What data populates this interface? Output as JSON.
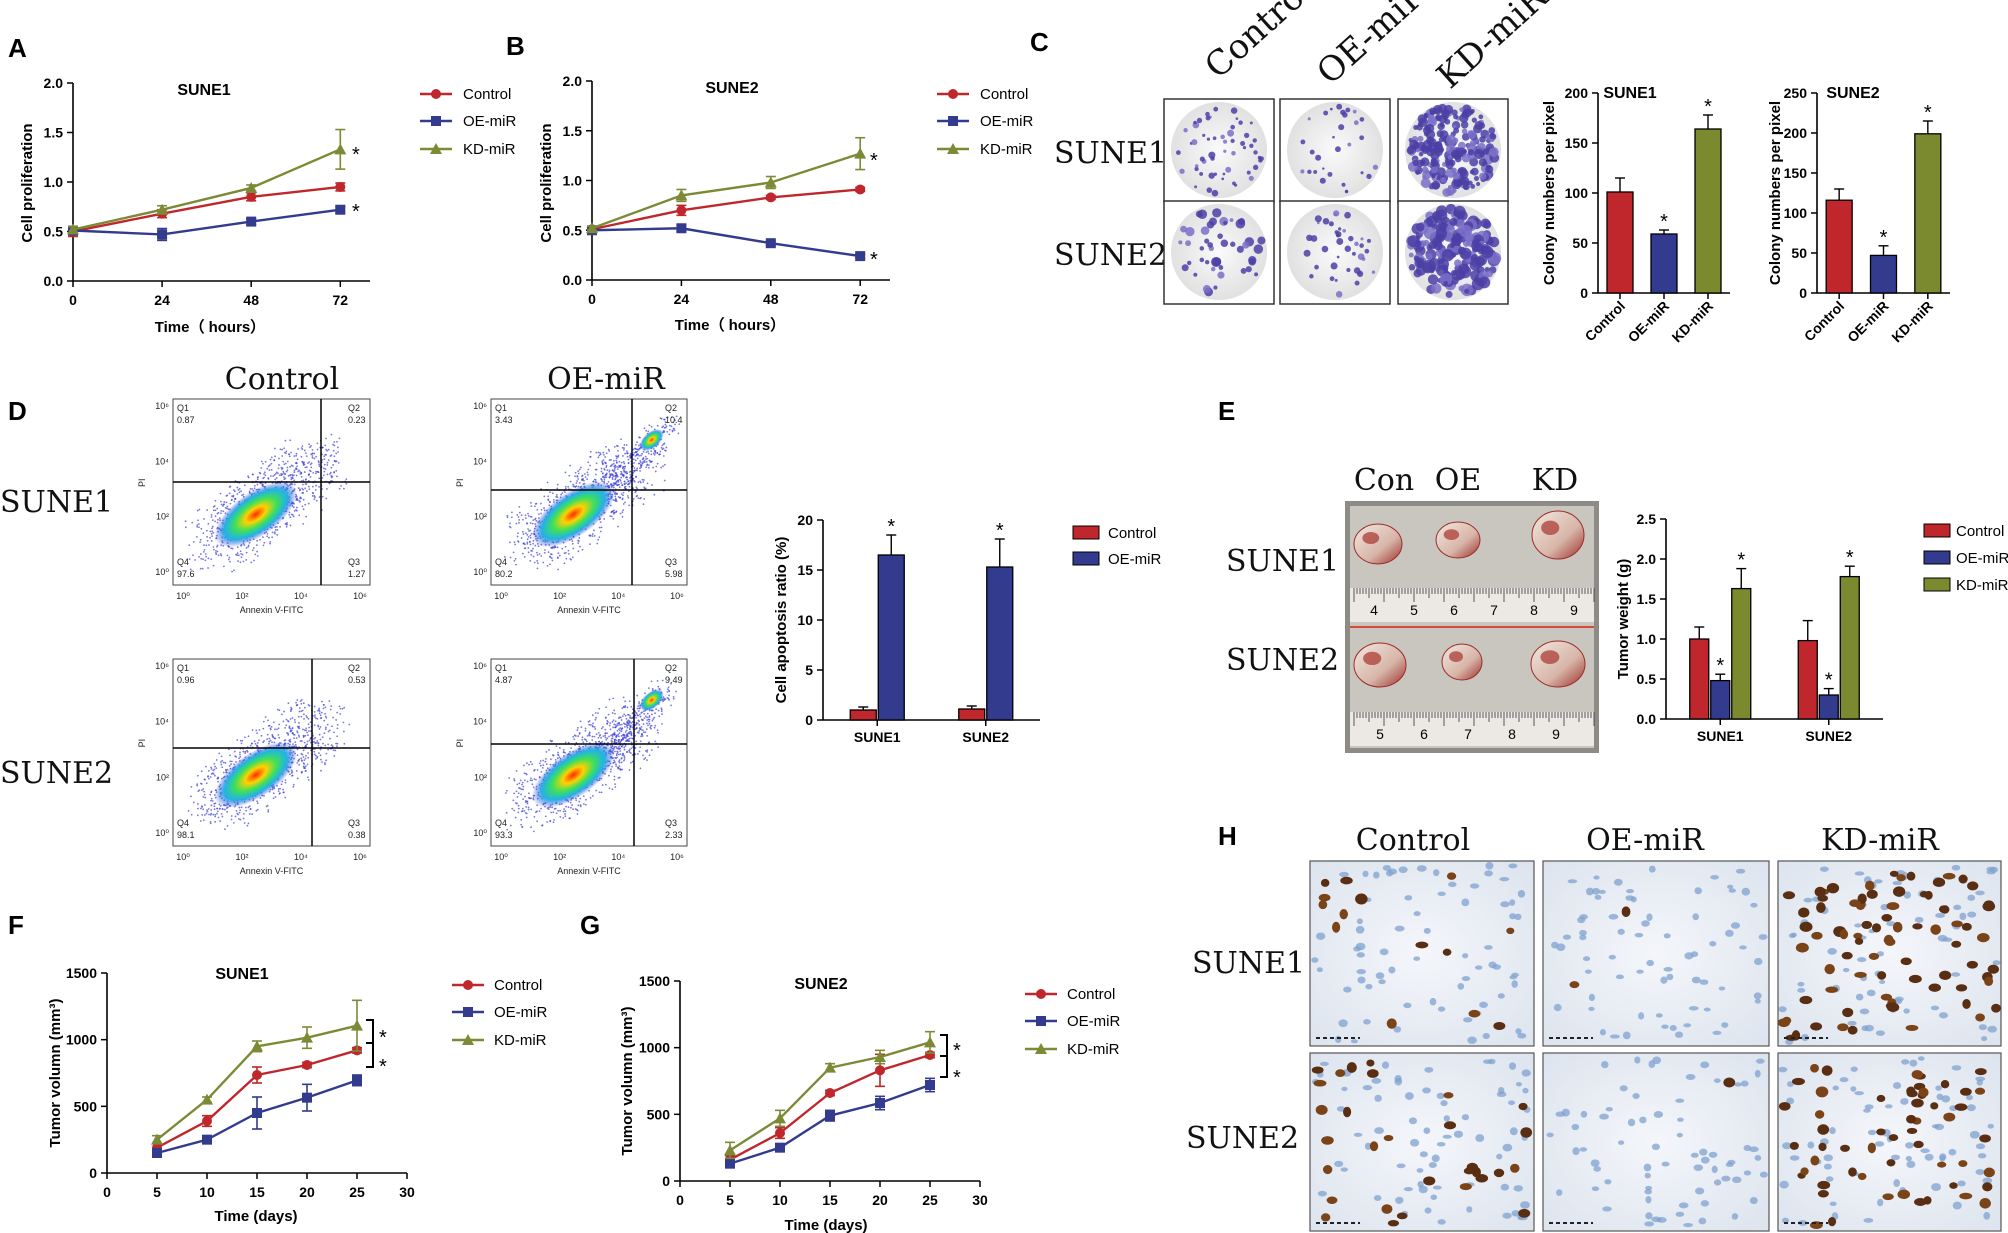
{
  "panels": {
    "A": "A",
    "B": "B",
    "C": "C",
    "D": "D",
    "E": "E",
    "F": "F",
    "G": "G",
    "H": "H"
  },
  "colors": {
    "control": "#c0272d",
    "oe": "#323b8e",
    "kd": "#7d8a35",
    "kdbar": "#7b8a2f"
  },
  "prolif": {
    "xlabel": "Time（ hours）",
    "ylabel": "Cell proliferation",
    "xticks": [
      "0",
      "24",
      "48",
      "72"
    ],
    "yticks": [
      "0.0",
      "0.5",
      "1.0",
      "1.5",
      "2.0"
    ],
    "legend": [
      "Control",
      "OE-miR",
      "KD-miR"
    ]
  },
  "chart_data": [
    {
      "id": "A",
      "type": "line",
      "title": "SUNE1",
      "xlabel": "Time（ hours）",
      "ylabel": "Cell proliferation",
      "x": [
        0,
        24,
        48,
        72
      ],
      "xlim": [
        0,
        80
      ],
      "ylim": [
        0,
        2.0
      ],
      "series": [
        {
          "name": "Control",
          "values": [
            0.5,
            0.68,
            0.85,
            0.95
          ],
          "err": [
            0.05,
            0.04,
            0.04,
            0.04
          ]
        },
        {
          "name": "OE-miR",
          "values": [
            0.51,
            0.47,
            0.6,
            0.72
          ],
          "err": [
            0.04,
            0.06,
            0.03,
            0.03
          ]
        },
        {
          "name": "KD-miR",
          "values": [
            0.52,
            0.72,
            0.94,
            1.33
          ],
          "err": [
            0.03,
            0.04,
            0.03,
            0.2
          ]
        }
      ],
      "annotations": [
        "*",
        "*"
      ]
    },
    {
      "id": "B",
      "type": "line",
      "title": "SUNE2",
      "xlabel": "Time（ hours）",
      "ylabel": "Cell proliferation",
      "x": [
        0,
        24,
        48,
        72
      ],
      "xlim": [
        0,
        80
      ],
      "ylim": [
        0,
        2.0
      ],
      "series": [
        {
          "name": "Control",
          "values": [
            0.51,
            0.7,
            0.83,
            0.91
          ],
          "err": [
            0.02,
            0.05,
            0.02,
            0.02
          ]
        },
        {
          "name": "OE-miR",
          "values": [
            0.5,
            0.52,
            0.37,
            0.24
          ],
          "err": [
            0.02,
            0.03,
            0.02,
            0.02
          ]
        },
        {
          "name": "KD-miR",
          "values": [
            0.52,
            0.85,
            0.98,
            1.27
          ],
          "err": [
            0.02,
            0.06,
            0.06,
            0.16
          ]
        }
      ],
      "annotations": [
        "*",
        "*"
      ]
    },
    {
      "id": "C1",
      "type": "bar",
      "title": "SUNE1",
      "ylabel": "Colony numbers per pixel",
      "categories": [
        "Control",
        "OE-miR",
        "KD-miR"
      ],
      "values": [
        101,
        59,
        164
      ],
      "err": [
        14,
        4,
        14
      ],
      "ylim": [
        0,
        200
      ],
      "yticks": [
        "0",
        "50",
        "100",
        "150",
        "200"
      ],
      "annotations": [
        "*",
        "*"
      ]
    },
    {
      "id": "C2",
      "type": "bar",
      "title": "SUNE2",
      "ylabel": "Colony numbers per pixel",
      "categories": [
        "Control",
        "OE-miR",
        "KD-miR"
      ],
      "values": [
        116,
        47,
        199
      ],
      "err": [
        14,
        12,
        16
      ],
      "ylim": [
        0,
        250
      ],
      "yticks": [
        "0",
        "50",
        "100",
        "150",
        "200",
        "250"
      ],
      "annotations": [
        "*",
        "*"
      ]
    },
    {
      "id": "D",
      "type": "bar",
      "title": "",
      "ylabel": "Cell apoptosis ratio (%)",
      "categories": [
        "SUNE1",
        "SUNE2"
      ],
      "series": [
        {
          "name": "Control",
          "values": [
            1.0,
            1.1
          ],
          "err": [
            0.3,
            0.3
          ]
        },
        {
          "name": "OE-miR",
          "values": [
            16.5,
            15.3
          ],
          "err": [
            2.0,
            2.8
          ]
        }
      ],
      "ylim": [
        0,
        20
      ],
      "yticks": [
        "0",
        "5",
        "10",
        "15",
        "20"
      ],
      "annotations": [
        "*",
        "*"
      ]
    },
    {
      "id": "E",
      "type": "bar",
      "title": "",
      "ylabel": "Tumor weight (g)",
      "categories": [
        "SUNE1",
        "SUNE2"
      ],
      "series": [
        {
          "name": "Control",
          "values": [
            1.0,
            0.98
          ],
          "err": [
            0.15,
            0.25
          ]
        },
        {
          "name": "OE-miR",
          "values": [
            0.48,
            0.3
          ],
          "err": [
            0.08,
            0.08
          ]
        },
        {
          "name": "KD-miR",
          "values": [
            1.63,
            1.78
          ],
          "err": [
            0.25,
            0.13
          ]
        }
      ],
      "ylim": [
        0,
        2.5
      ],
      "yticks": [
        "0.0",
        "0.5",
        "1.0",
        "1.5",
        "2.0",
        "2.5"
      ],
      "annotations": [
        "*",
        "*",
        "*",
        "*"
      ]
    },
    {
      "id": "F",
      "type": "line",
      "title": "SUNE1",
      "xlabel": "Time (days)",
      "ylabel": "Tumor volumn (mm³)",
      "x": [
        5,
        10,
        15,
        20,
        25
      ],
      "xlim": [
        0,
        30
      ],
      "ylim": [
        0,
        1500
      ],
      "series": [
        {
          "name": "Control",
          "values": [
            190,
            390,
            735,
            810,
            920
          ],
          "err": [
            30,
            40,
            60,
            20,
            20
          ]
        },
        {
          "name": "OE-miR",
          "values": [
            150,
            250,
            450,
            565,
            695
          ],
          "err": [
            20,
            20,
            120,
            100,
            40
          ]
        },
        {
          "name": "KD-miR",
          "values": [
            250,
            550,
            950,
            1015,
            1105
          ],
          "err": [
            30,
            20,
            40,
            80,
            190
          ]
        }
      ],
      "annotations": [
        "*",
        "*"
      ]
    },
    {
      "id": "G",
      "type": "line",
      "title": "SUNE2",
      "xlabel": "Time (days)",
      "ylabel": "Tumor volumn (mm³)",
      "x": [
        5,
        10,
        15,
        20,
        25
      ],
      "xlim": [
        0,
        30
      ],
      "ylim": [
        0,
        1500
      ],
      "series": [
        {
          "name": "Control",
          "values": [
            160,
            360,
            660,
            830,
            945
          ],
          "err": [
            30,
            40,
            20,
            120,
            20
          ]
        },
        {
          "name": "OE-miR",
          "values": [
            130,
            250,
            490,
            585,
            720
          ],
          "err": [
            20,
            20,
            40,
            50,
            50
          ]
        },
        {
          "name": "KD-miR",
          "values": [
            230,
            470,
            850,
            930,
            1040
          ],
          "err": [
            60,
            60,
            30,
            50,
            80
          ]
        }
      ],
      "annotations": [
        "*",
        "*"
      ]
    }
  ],
  "panelC": {
    "cols": [
      "Control",
      "OE-miR",
      "KD-miR"
    ],
    "rows": [
      "SUNE1",
      "SUNE2"
    ]
  },
  "panelD": {
    "cols": [
      "Control",
      "OE-miR"
    ],
    "rows": [
      "SUNE1",
      "SUNE2"
    ],
    "xlabel": "Annexin V-FITC",
    "ylabel": "PI",
    "quads": [
      {
        "q1": "0.87",
        "q2": "0.23",
        "q3": "1.27",
        "q4": "97.6"
      },
      {
        "q1": "3.43",
        "q2": "10.4",
        "q3": "5.98",
        "q4": "80.2"
      },
      {
        "q1": "0.96",
        "q2": "0.53",
        "q3": "0.38",
        "q4": "98.1"
      },
      {
        "q1": "4.87",
        "q2": "9.49",
        "q3": "2.33",
        "q4": "93.3"
      }
    ]
  },
  "panelE": {
    "cols": [
      "Con",
      "OE",
      "KD"
    ],
    "rows": [
      "SUNE1",
      "SUNE2"
    ],
    "ruler1": [
      "4",
      "5",
      "6",
      "7",
      "8",
      "9"
    ],
    "ruler2": [
      "5",
      "6",
      "7",
      "8",
      "9"
    ]
  },
  "panelH": {
    "cols": [
      "Control",
      "OE-miR",
      "KD-miR"
    ],
    "rows": [
      "SUNE1",
      "SUNE2"
    ]
  },
  "time_days": "Time (days)"
}
